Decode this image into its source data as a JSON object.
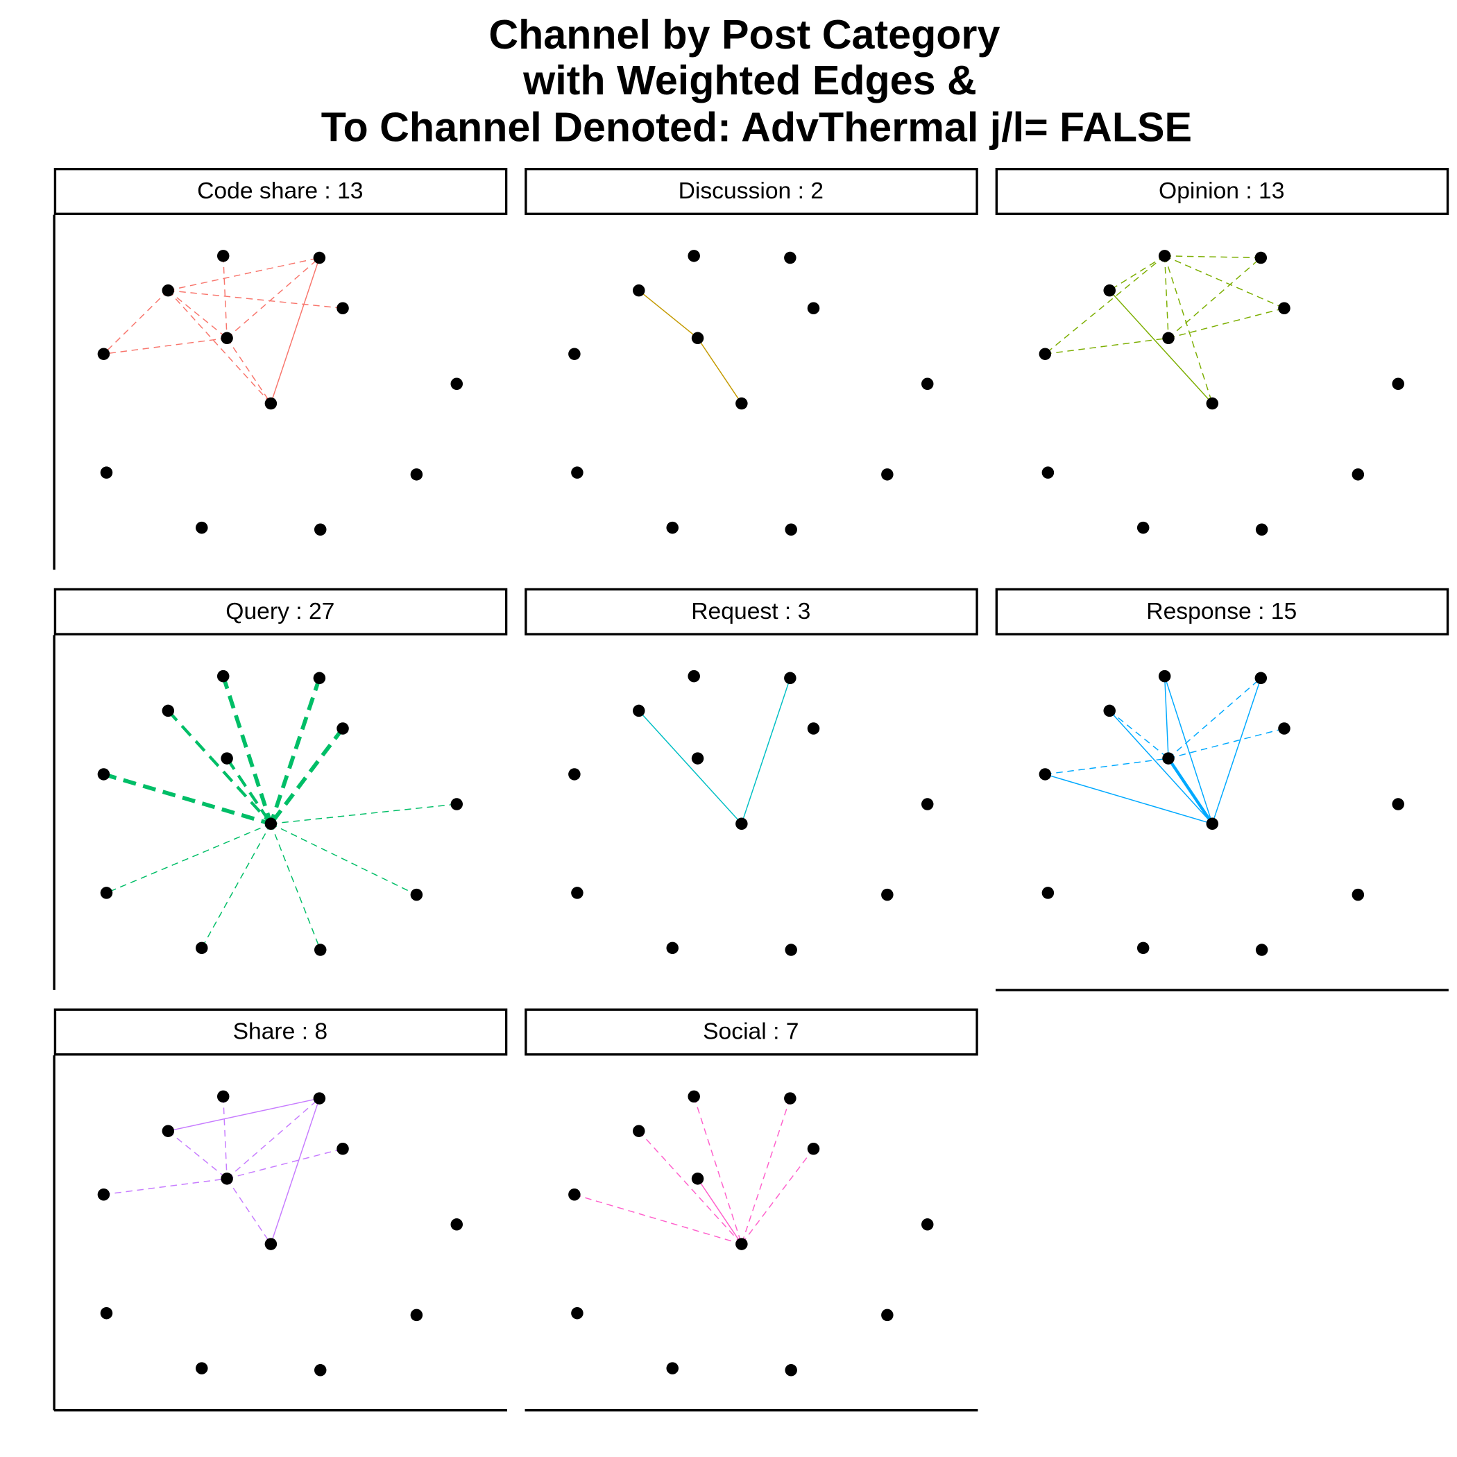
{
  "title": [
    "Channel by Post Category",
    "with Weighted Edges &",
    "To Channel Denoted:  AdvThermal j/l=  FALSE"
  ],
  "node_color": "#000000",
  "panels": [
    {
      "label": "Code share : 13",
      "color": "#F8766D",
      "edges": [
        {
          "from": 2,
          "to": 4,
          "dashed": true,
          "weight": 1
        },
        {
          "from": 2,
          "to": 5,
          "dashed": true,
          "weight": 1
        },
        {
          "from": 2,
          "to": 1,
          "dashed": true,
          "weight": 1
        },
        {
          "from": 2,
          "to": 3,
          "dashed": true,
          "weight": 1
        },
        {
          "from": 2,
          "to": 7,
          "dashed": true,
          "weight": 1
        },
        {
          "from": 0,
          "to": 4,
          "dashed": true,
          "weight": 1
        },
        {
          "from": 4,
          "to": 1,
          "dashed": true,
          "weight": 1
        },
        {
          "from": 4,
          "to": 5,
          "dashed": true,
          "weight": 1
        },
        {
          "from": 4,
          "to": 7,
          "dashed": true,
          "weight": 1
        },
        {
          "from": 1,
          "to": 7,
          "dashed": false,
          "weight": 1
        }
      ]
    },
    {
      "label": "Discussion : 2",
      "color": "#C49A00",
      "edges": [
        {
          "from": 2,
          "to": 4,
          "dashed": false,
          "weight": 1
        },
        {
          "from": 4,
          "to": 7,
          "dashed": false,
          "weight": 1
        }
      ]
    },
    {
      "label": "Opinion : 13",
      "color": "#7CAE00",
      "edges": [
        {
          "from": 0,
          "to": 2,
          "dashed": true,
          "weight": 1
        },
        {
          "from": 0,
          "to": 1,
          "dashed": true,
          "weight": 1
        },
        {
          "from": 0,
          "to": 3,
          "dashed": true,
          "weight": 1
        },
        {
          "from": 0,
          "to": 4,
          "dashed": true,
          "weight": 1
        },
        {
          "from": 0,
          "to": 7,
          "dashed": true,
          "weight": 1
        },
        {
          "from": 0,
          "to": 5,
          "dashed": true,
          "weight": 1
        },
        {
          "from": 5,
          "to": 4,
          "dashed": true,
          "weight": 1
        },
        {
          "from": 4,
          "to": 1,
          "dashed": true,
          "weight": 1
        },
        {
          "from": 4,
          "to": 3,
          "dashed": true,
          "weight": 1
        },
        {
          "from": 2,
          "to": 7,
          "dashed": false,
          "weight": 1
        }
      ]
    },
    {
      "label": "Query : 27",
      "color": "#00BE67",
      "edges": [
        {
          "from": 5,
          "to": 7,
          "dashed": true,
          "weight": 3
        },
        {
          "from": 0,
          "to": 7,
          "dashed": true,
          "weight": 3
        },
        {
          "from": 1,
          "to": 7,
          "dashed": true,
          "weight": 3
        },
        {
          "from": 3,
          "to": 7,
          "dashed": true,
          "weight": 3
        },
        {
          "from": 2,
          "to": 7,
          "dashed": true,
          "weight": 2
        },
        {
          "from": 4,
          "to": 7,
          "dashed": true,
          "weight": 2
        },
        {
          "from": 7,
          "to": 6,
          "dashed": true,
          "weight": 1
        },
        {
          "from": 7,
          "to": 8,
          "dashed": true,
          "weight": 1
        },
        {
          "from": 7,
          "to": 9,
          "dashed": true,
          "weight": 1
        },
        {
          "from": 7,
          "to": 10,
          "dashed": true,
          "weight": 1
        },
        {
          "from": 7,
          "to": 11,
          "dashed": true,
          "weight": 1
        }
      ]
    },
    {
      "label": "Request : 3",
      "color": "#00BFC4",
      "edges": [
        {
          "from": 2,
          "to": 7,
          "dashed": false,
          "weight": 1
        },
        {
          "from": 1,
          "to": 7,
          "dashed": false,
          "weight": 1
        }
      ]
    },
    {
      "label": "Response : 15",
      "color": "#00A9FF",
      "edges": [
        {
          "from": 5,
          "to": 7,
          "dashed": false,
          "weight": 1
        },
        {
          "from": 0,
          "to": 7,
          "dashed": false,
          "weight": 1
        },
        {
          "from": 1,
          "to": 7,
          "dashed": false,
          "weight": 1
        },
        {
          "from": 2,
          "to": 7,
          "dashed": false,
          "weight": 1
        },
        {
          "from": 4,
          "to": 7,
          "dashed": false,
          "weight": 2
        },
        {
          "from": 0,
          "to": 4,
          "dashed": false,
          "weight": 1
        },
        {
          "from": 2,
          "to": 4,
          "dashed": true,
          "weight": 1
        },
        {
          "from": 5,
          "to": 4,
          "dashed": true,
          "weight": 1
        },
        {
          "from": 4,
          "to": 1,
          "dashed": true,
          "weight": 1
        },
        {
          "from": 4,
          "to": 3,
          "dashed": true,
          "weight": 1
        }
      ]
    },
    {
      "label": "Share : 8",
      "color": "#C77CFF",
      "edges": [
        {
          "from": 2,
          "to": 1,
          "dashed": false,
          "weight": 1
        },
        {
          "from": 1,
          "to": 7,
          "dashed": false,
          "weight": 1
        },
        {
          "from": 2,
          "to": 4,
          "dashed": true,
          "weight": 1
        },
        {
          "from": 0,
          "to": 4,
          "dashed": true,
          "weight": 1
        },
        {
          "from": 4,
          "to": 1,
          "dashed": true,
          "weight": 1
        },
        {
          "from": 4,
          "to": 3,
          "dashed": true,
          "weight": 1
        },
        {
          "from": 5,
          "to": 4,
          "dashed": true,
          "weight": 1
        },
        {
          "from": 4,
          "to": 7,
          "dashed": true,
          "weight": 1
        }
      ]
    },
    {
      "label": "Social : 7",
      "color": "#FF61CC",
      "edges": [
        {
          "from": 0,
          "to": 7,
          "dashed": true,
          "weight": 1
        },
        {
          "from": 1,
          "to": 7,
          "dashed": true,
          "weight": 1
        },
        {
          "from": 2,
          "to": 7,
          "dashed": true,
          "weight": 1
        },
        {
          "from": 3,
          "to": 7,
          "dashed": true,
          "weight": 1
        },
        {
          "from": 5,
          "to": 7,
          "dashed": true,
          "weight": 1
        },
        {
          "from": 4,
          "to": 7,
          "dashed": false,
          "weight": 1
        }
      ]
    }
  ]
}
